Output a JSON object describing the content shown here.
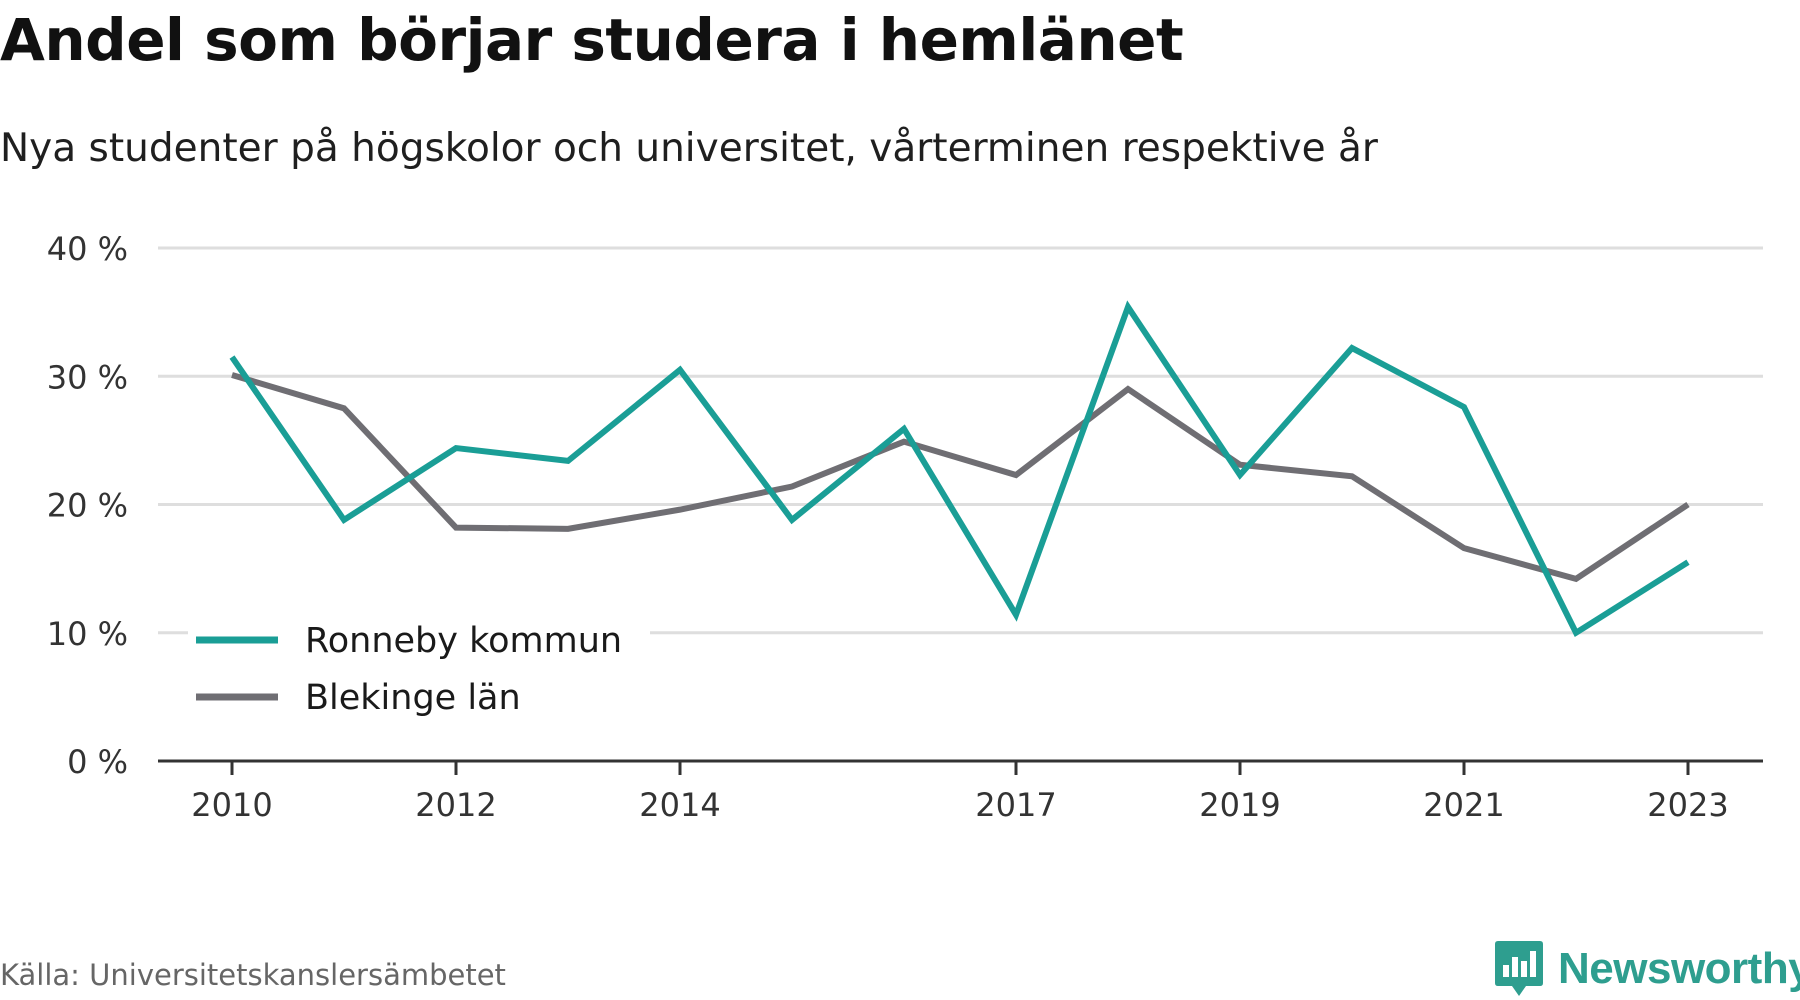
{
  "title": "Andel som börjar studera i hemlänet",
  "subtitle": "Nya studenter på högskolor och universitet, vårterminen respektive år",
  "source": "Källa: Universitetskanslersämbetet",
  "brand": {
    "name": "Newsworthy",
    "icon": "newsworthy-logo-icon",
    "color": "#2e9e8f"
  },
  "chart_data": {
    "type": "line",
    "x": [
      2010,
      2011,
      2012,
      2013,
      2014,
      2015,
      2016,
      2017,
      2018,
      2019,
      2020,
      2021,
      2022,
      2023
    ],
    "xticks": [
      "2010",
      "2012",
      "2014",
      "2017",
      "2019",
      "2021",
      "2023"
    ],
    "yticks": [
      "0 %",
      "10 %",
      "20 %",
      "30 %",
      "40 %"
    ],
    "ylim": [
      0,
      40
    ],
    "grid": true,
    "legend_position": "bottom-left",
    "series": [
      {
        "name": "Ronneby kommun",
        "color": "#1a9e96",
        "values": [
          31.5,
          18.8,
          24.4,
          23.4,
          30.5,
          18.8,
          25.9,
          11.4,
          35.4,
          22.3,
          32.2,
          27.6,
          10.0,
          15.5
        ]
      },
      {
        "name": "Blekinge län",
        "color": "#6f6e73",
        "values": [
          30.1,
          27.5,
          18.2,
          18.1,
          19.6,
          21.4,
          24.9,
          22.3,
          29.0,
          23.1,
          22.2,
          16.6,
          14.2,
          20.0
        ]
      }
    ]
  }
}
